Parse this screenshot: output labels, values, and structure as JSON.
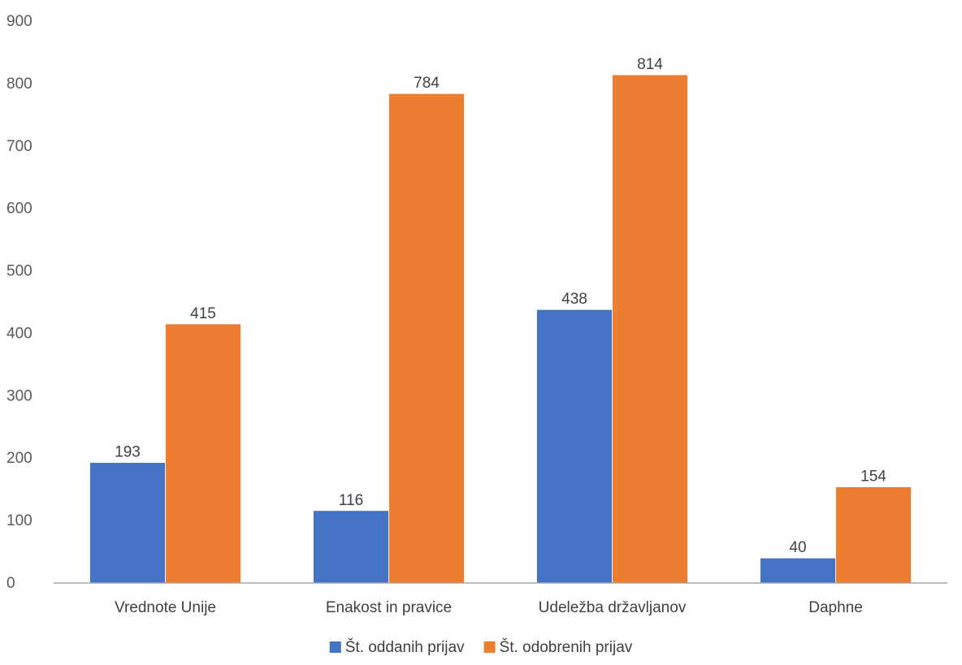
{
  "chart_data": {
    "type": "bar",
    "title": "",
    "xlabel": "",
    "ylabel": "",
    "categories": [
      "Vrednote Unije",
      "Enakost in pravice",
      "Udeležba državljanov",
      "Daphne"
    ],
    "series": [
      {
        "name": "Št. oddanih prijav",
        "color": "#4472C4",
        "values": [
          193,
          116,
          438,
          40
        ]
      },
      {
        "name": "Št. odobrenih prijav",
        "color": "#ED7D31",
        "values": [
          415,
          784,
          814,
          154
        ]
      }
    ],
    "ylim": [
      0,
      900
    ],
    "yticks": [
      0,
      100,
      200,
      300,
      400,
      500,
      600,
      700,
      800,
      900
    ],
    "grid": false,
    "legend": "bottom",
    "data_labels": true
  }
}
